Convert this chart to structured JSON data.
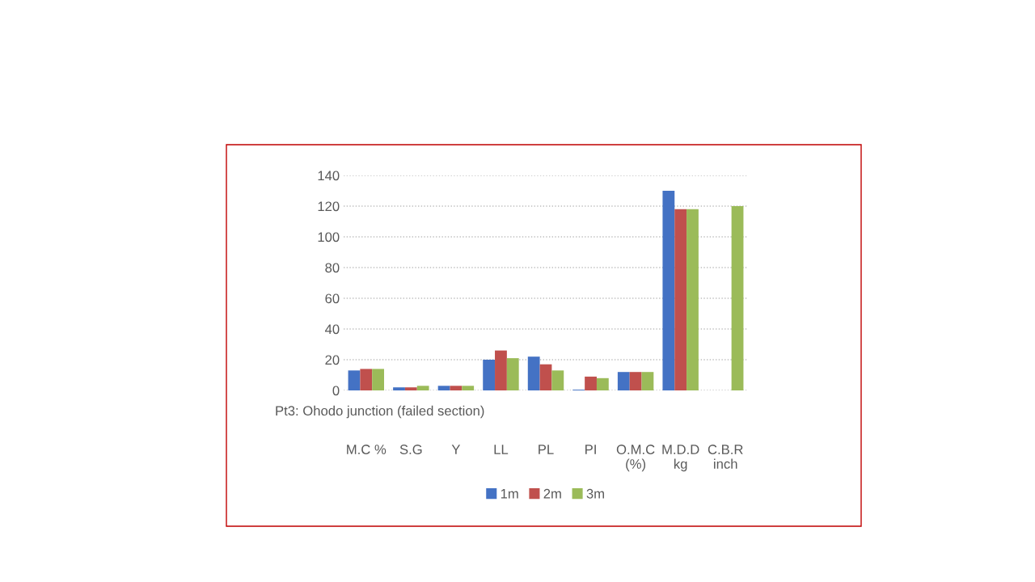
{
  "chart_data": {
    "type": "bar",
    "title": "Pt3: Ohodo junction (failed section)",
    "categories": [
      "M.C %",
      "S.G",
      "Y",
      "LL",
      "PL",
      "PI",
      "O.M.C\n(%)",
      "M.D.D\nkg",
      "C.B.R\ninch"
    ],
    "series": [
      {
        "name": "1m",
        "color": "#4472c4",
        "values": [
          13,
          2,
          3,
          20,
          22,
          0.5,
          12,
          130,
          null
        ]
      },
      {
        "name": "2m",
        "color": "#c0504d",
        "values": [
          14,
          2,
          3,
          26,
          17,
          9,
          12,
          118,
          null
        ]
      },
      {
        "name": "3m",
        "color": "#9bbb59",
        "values": [
          14,
          3,
          3,
          21,
          13,
          8,
          12,
          118,
          120
        ]
      }
    ],
    "ylim": [
      0,
      140
    ],
    "yticks": [
      0,
      20,
      40,
      60,
      80,
      100,
      120,
      140
    ],
    "grid": "y",
    "legend": "bottom"
  }
}
